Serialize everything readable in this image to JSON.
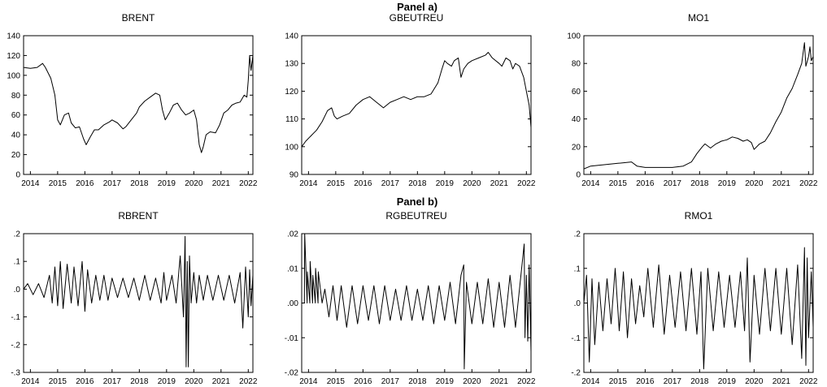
{
  "panels": [
    {
      "label": "Panel a)",
      "row": 0
    },
    {
      "label": "Panel b)",
      "row": 1
    }
  ],
  "chart_data": [
    {
      "type": "line",
      "title": "BRENT",
      "row": 0,
      "col": 0,
      "xlabel": "",
      "ylabel": "",
      "xlim": [
        2013.75,
        2022.17
      ],
      "ylim": [
        0,
        140
      ],
      "yticks": [
        0,
        20,
        40,
        60,
        80,
        100,
        120,
        140
      ],
      "ytick_labels": [
        "0",
        "20",
        "40",
        "60",
        "80",
        "100",
        "120",
        "140"
      ],
      "xticks": [
        2014,
        2015,
        2016,
        2017,
        2018,
        2019,
        2020,
        2021,
        2022
      ],
      "xtick_labels": [
        "2014",
        "2015",
        "2016",
        "2017",
        "2018",
        "2019",
        "2020",
        "2021",
        "2022"
      ],
      "grid": false,
      "series": [
        {
          "x": [
            2013.75,
            2014.0,
            2014.25,
            2014.45,
            2014.55,
            2014.75,
            2014.9,
            2015.0,
            2015.1,
            2015.25,
            2015.4,
            2015.5,
            2015.65,
            2015.8,
            2015.95,
            2016.05,
            2016.2,
            2016.35,
            2016.5,
            2016.7,
            2016.9,
            2017.0,
            2017.2,
            2017.4,
            2017.5,
            2017.7,
            2017.9,
            2018.0,
            2018.2,
            2018.4,
            2018.6,
            2018.75,
            2018.85,
            2018.95,
            2019.1,
            2019.25,
            2019.4,
            2019.55,
            2019.7,
            2019.85,
            2020.0,
            2020.1,
            2020.2,
            2020.28,
            2020.35,
            2020.45,
            2020.6,
            2020.8,
            2020.95,
            2021.1,
            2021.25,
            2021.4,
            2021.55,
            2021.7,
            2021.85,
            2021.95,
            2022.0,
            2022.05,
            2022.1,
            2022.17
          ],
          "y": [
            108,
            107,
            108,
            112,
            108,
            97,
            80,
            55,
            50,
            60,
            62,
            52,
            47,
            48,
            36,
            30,
            38,
            45,
            45,
            50,
            53,
            55,
            52,
            46,
            48,
            55,
            62,
            68,
            74,
            78,
            82,
            80,
            65,
            55,
            62,
            70,
            72,
            65,
            60,
            62,
            65,
            55,
            30,
            22,
            28,
            40,
            43,
            42,
            50,
            62,
            65,
            70,
            72,
            73,
            80,
            78,
            95,
            120,
            105,
            120
          ]
        }
      ]
    },
    {
      "type": "line",
      "title": "GBEUTREU",
      "row": 0,
      "col": 1,
      "xlabel": "",
      "ylabel": "",
      "xlim": [
        2013.75,
        2022.17
      ],
      "ylim": [
        90,
        140
      ],
      "yticks": [
        90,
        100,
        110,
        120,
        130,
        140
      ],
      "ytick_labels": [
        "90",
        "100",
        "110",
        "120",
        "130",
        "140"
      ],
      "xticks": [
        2014,
        2015,
        2016,
        2017,
        2018,
        2019,
        2020,
        2021,
        2022
      ],
      "xtick_labels": [
        "2014",
        "2015",
        "2016",
        "2017",
        "2018",
        "2019",
        "2020",
        "2021",
        "2022"
      ],
      "grid": false,
      "series": [
        {
          "x": [
            2013.75,
            2013.9,
            2014.1,
            2014.3,
            2014.5,
            2014.7,
            2014.85,
            2014.95,
            2015.05,
            2015.25,
            2015.5,
            2015.75,
            2016.0,
            2016.25,
            2016.5,
            2016.75,
            2017.0,
            2017.25,
            2017.5,
            2017.75,
            2018.0,
            2018.25,
            2018.5,
            2018.75,
            2018.9,
            2019.0,
            2019.1,
            2019.25,
            2019.35,
            2019.5,
            2019.6,
            2019.7,
            2019.85,
            2020.0,
            2020.25,
            2020.5,
            2020.6,
            2020.75,
            2021.0,
            2021.1,
            2021.25,
            2021.4,
            2021.5,
            2021.6,
            2021.75,
            2021.9,
            2022.0,
            2022.1,
            2022.17
          ],
          "y": [
            100,
            102,
            104,
            106,
            109,
            113,
            114,
            111,
            110,
            111,
            112,
            115,
            117,
            118,
            116,
            114,
            116,
            117,
            118,
            117,
            118,
            118,
            119,
            123,
            128,
            131,
            130,
            129,
            131,
            132,
            125,
            128,
            130,
            131,
            132,
            133,
            134,
            132,
            130,
            129,
            132,
            131,
            128,
            130,
            129,
            125,
            120,
            115,
            107
          ]
        }
      ]
    },
    {
      "type": "line",
      "title": "MO1",
      "row": 0,
      "col": 2,
      "xlabel": "",
      "ylabel": "",
      "xlim": [
        2013.75,
        2022.17
      ],
      "ylim": [
        0,
        100
      ],
      "yticks": [
        0,
        20,
        40,
        60,
        80,
        100
      ],
      "ytick_labels": [
        "0",
        "20",
        "40",
        "60",
        "80",
        "100"
      ],
      "xticks": [
        2014,
        2015,
        2016,
        2017,
        2018,
        2019,
        2020,
        2021,
        2022
      ],
      "xtick_labels": [
        "2014",
        "2015",
        "2016",
        "2017",
        "2018",
        "2019",
        "2020",
        "2021",
        "2022"
      ],
      "grid": false,
      "series": [
        {
          "x": [
            2013.75,
            2014.0,
            2014.5,
            2015.0,
            2015.5,
            2015.7,
            2016.0,
            2016.5,
            2017.0,
            2017.4,
            2017.7,
            2017.9,
            2018.1,
            2018.2,
            2018.4,
            2018.6,
            2018.8,
            2019.0,
            2019.2,
            2019.4,
            2019.6,
            2019.75,
            2019.9,
            2020.0,
            2020.2,
            2020.4,
            2020.6,
            2020.8,
            2021.0,
            2021.2,
            2021.4,
            2021.6,
            2021.75,
            2021.85,
            2021.9,
            2022.0,
            2022.05,
            2022.1,
            2022.17
          ],
          "y": [
            4,
            6,
            7,
            8,
            9,
            6,
            5,
            5,
            5,
            6,
            9,
            15,
            20,
            22,
            19,
            22,
            24,
            25,
            27,
            26,
            24,
            25,
            23,
            18,
            22,
            24,
            30,
            38,
            45,
            55,
            62,
            72,
            80,
            95,
            78,
            85,
            92,
            82,
            85
          ]
        }
      ]
    },
    {
      "type": "line",
      "title": "RBRENT",
      "row": 1,
      "col": 0,
      "xlabel": "",
      "ylabel": "",
      "xlim": [
        2013.75,
        2022.17
      ],
      "ylim": [
        -0.3,
        0.2
      ],
      "yticks": [
        -0.3,
        -0.2,
        -0.1,
        0.0,
        0.1,
        0.2
      ],
      "ytick_labels": [
        "-.3",
        "-.2",
        "-.1",
        ".0",
        ".1",
        ".2"
      ],
      "xticks": [
        2014,
        2015,
        2016,
        2017,
        2018,
        2019,
        2020,
        2021,
        2022
      ],
      "xtick_labels": [
        "2014",
        "2015",
        "2016",
        "2017",
        "2018",
        "2019",
        "2020",
        "2021",
        "2022"
      ],
      "grid": false,
      "series": [
        {
          "x": [
            2013.75,
            2013.9,
            2014.1,
            2014.3,
            2014.5,
            2014.7,
            2014.8,
            2014.9,
            2015.0,
            2015.1,
            2015.2,
            2015.35,
            2015.5,
            2015.6,
            2015.75,
            2015.9,
            2016.0,
            2016.1,
            2016.25,
            2016.4,
            2016.55,
            2016.7,
            2016.85,
            2017.0,
            2017.2,
            2017.4,
            2017.6,
            2017.8,
            2018.0,
            2018.2,
            2018.4,
            2018.6,
            2018.8,
            2018.9,
            2019.0,
            2019.2,
            2019.35,
            2019.5,
            2019.62,
            2019.68,
            2019.72,
            2019.76,
            2019.8,
            2019.84,
            2019.9,
            2020.0,
            2020.1,
            2020.2,
            2020.35,
            2020.5,
            2020.7,
            2020.9,
            2021.1,
            2021.3,
            2021.5,
            2021.7,
            2021.8,
            2021.9,
            2022.0,
            2022.05,
            2022.1,
            2022.17
          ],
          "y": [
            0.0,
            0.02,
            -0.02,
            0.02,
            -0.03,
            0.05,
            -0.05,
            0.08,
            -0.06,
            0.1,
            -0.07,
            0.09,
            -0.05,
            0.08,
            -0.06,
            0.1,
            -0.08,
            0.07,
            -0.05,
            0.05,
            -0.04,
            0.05,
            -0.04,
            0.04,
            -0.03,
            0.04,
            -0.03,
            0.04,
            -0.04,
            0.05,
            -0.04,
            0.04,
            -0.05,
            0.06,
            -0.04,
            0.05,
            -0.05,
            0.12,
            -0.1,
            0.19,
            -0.28,
            0.1,
            -0.28,
            0.12,
            -0.05,
            0.06,
            -0.05,
            0.05,
            -0.04,
            0.05,
            -0.04,
            0.05,
            -0.04,
            0.05,
            -0.05,
            0.06,
            -0.14,
            0.08,
            -0.1,
            0.07,
            -0.06,
            0.05
          ]
        }
      ]
    },
    {
      "type": "line",
      "title": "RGBEUTREU",
      "row": 1,
      "col": 1,
      "xlabel": "",
      "ylabel": "",
      "xlim": [
        2013.75,
        2022.17
      ],
      "ylim": [
        -0.02,
        0.02
      ],
      "yticks": [
        -0.02,
        -0.01,
        0.0,
        0.01,
        0.02
      ],
      "ytick_labels": [
        "-.02",
        "-.01",
        ".00",
        ".01",
        ".02"
      ],
      "xticks": [
        2014,
        2015,
        2016,
        2017,
        2018,
        2019,
        2020,
        2021,
        2022
      ],
      "xtick_labels": [
        "2014",
        "2015",
        "2016",
        "2017",
        "2018",
        "2019",
        "2020",
        "2021",
        "2022"
      ],
      "grid": false,
      "series": [
        {
          "x": [
            2013.75,
            2013.85,
            2013.86,
            2013.95,
            2013.96,
            2014.05,
            2014.06,
            2014.15,
            2014.16,
            2014.25,
            2014.26,
            2014.35,
            2014.36,
            2014.5,
            2014.6,
            2014.75,
            2014.9,
            2015.05,
            2015.2,
            2015.4,
            2015.6,
            2015.8,
            2016.0,
            2016.2,
            2016.4,
            2016.6,
            2016.8,
            2017.0,
            2017.2,
            2017.4,
            2017.6,
            2017.8,
            2018.0,
            2018.2,
            2018.4,
            2018.6,
            2018.8,
            2019.0,
            2019.2,
            2019.4,
            2019.6,
            2019.7,
            2019.72,
            2019.8,
            2020.0,
            2020.2,
            2020.4,
            2020.6,
            2020.8,
            2021.0,
            2021.2,
            2021.4,
            2021.6,
            2021.8,
            2021.92,
            2021.95,
            2022.0,
            2022.05,
            2022.1,
            2022.17
          ],
          "y": [
            0.0,
            0.0,
            0.02,
            0.0,
            0.009,
            0.0,
            0.012,
            0.0,
            0.008,
            0.0,
            0.01,
            0.0,
            0.009,
            0.0,
            0.004,
            -0.004,
            0.005,
            -0.005,
            0.005,
            -0.007,
            0.005,
            -0.006,
            0.005,
            -0.005,
            0.005,
            -0.006,
            0.005,
            -0.005,
            0.004,
            -0.005,
            0.005,
            -0.005,
            0.004,
            -0.005,
            0.005,
            -0.006,
            0.005,
            -0.005,
            0.006,
            -0.006,
            0.008,
            0.011,
            -0.019,
            0.006,
            -0.006,
            0.006,
            -0.006,
            0.007,
            -0.007,
            0.006,
            -0.007,
            0.008,
            -0.007,
            0.008,
            0.017,
            -0.01,
            0.008,
            -0.011,
            0.011,
            -0.014
          ]
        }
      ]
    },
    {
      "type": "line",
      "title": "RMO1",
      "row": 1,
      "col": 2,
      "xlabel": "",
      "ylabel": "",
      "xlim": [
        2013.75,
        2022.17
      ],
      "ylim": [
        -0.2,
        0.2
      ],
      "yticks": [
        -0.2,
        -0.1,
        0.0,
        0.1,
        0.2
      ],
      "ytick_labels": [
        "-.2",
        "-.1",
        ".0",
        ".1",
        ".2"
      ],
      "xticks": [
        2014,
        2015,
        2016,
        2017,
        2018,
        2019,
        2020,
        2021,
        2022
      ],
      "xtick_labels": [
        "2014",
        "2015",
        "2016",
        "2017",
        "2018",
        "2019",
        "2020",
        "2021",
        "2022"
      ],
      "grid": false,
      "series": [
        {
          "x": [
            2013.75,
            2013.85,
            2013.95,
            2014.05,
            2014.15,
            2014.3,
            2014.45,
            2014.6,
            2014.75,
            2014.9,
            2015.05,
            2015.2,
            2015.35,
            2015.5,
            2015.65,
            2015.8,
            2015.95,
            2016.1,
            2016.3,
            2016.5,
            2016.7,
            2016.9,
            2017.1,
            2017.3,
            2017.5,
            2017.7,
            2017.9,
            2018.05,
            2018.15,
            2018.3,
            2018.5,
            2018.7,
            2018.9,
            2019.1,
            2019.3,
            2019.5,
            2019.65,
            2019.75,
            2019.85,
            2020.0,
            2020.2,
            2020.4,
            2020.6,
            2020.8,
            2021.0,
            2021.2,
            2021.4,
            2021.6,
            2021.75,
            2021.85,
            2021.9,
            2021.95,
            2022.0,
            2022.1,
            2022.17
          ],
          "y": [
            0.0,
            0.08,
            -0.17,
            0.07,
            -0.12,
            0.06,
            -0.08,
            0.07,
            -0.06,
            0.1,
            -0.08,
            0.09,
            -0.1,
            0.07,
            -0.06,
            0.05,
            -0.04,
            0.1,
            -0.07,
            0.11,
            -0.09,
            0.08,
            -0.07,
            0.09,
            -0.08,
            0.1,
            -0.09,
            0.09,
            -0.19,
            0.1,
            -0.08,
            0.09,
            -0.07,
            0.08,
            -0.07,
            0.09,
            -0.08,
            0.13,
            -0.17,
            0.08,
            -0.09,
            0.1,
            -0.08,
            0.1,
            -0.09,
            0.1,
            -0.12,
            0.11,
            -0.16,
            0.16,
            -0.18,
            0.13,
            -0.1,
            0.09,
            -0.07
          ]
        }
      ]
    }
  ]
}
